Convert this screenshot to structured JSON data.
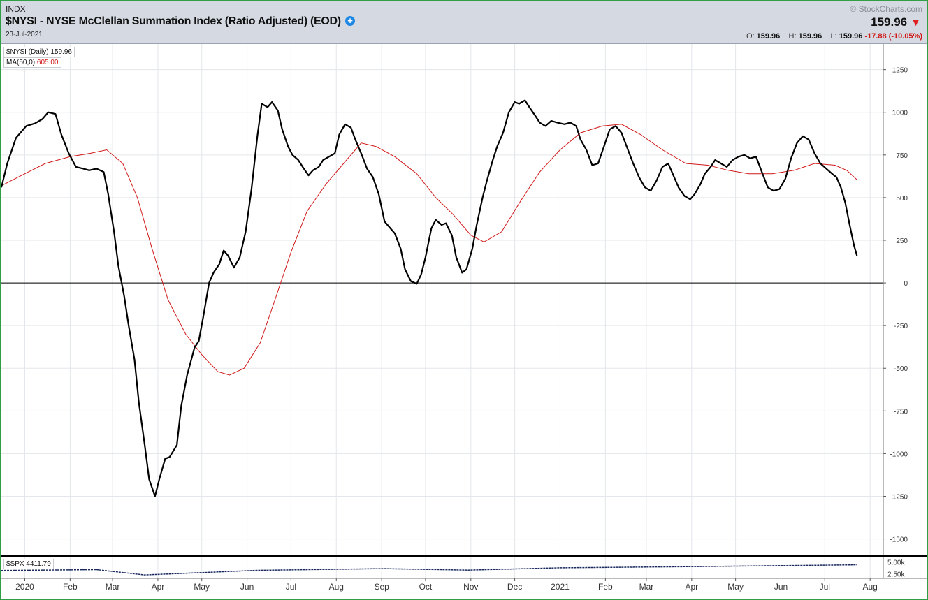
{
  "header": {
    "exchange": "INDX",
    "title": "$NYSI - NYSE McClellan Summation Index (Ratio Adjusted) (EOD)",
    "date": "23-Jul-2021",
    "copyright": "© StockCharts.com",
    "last_price": "159.96",
    "open_label": "O:",
    "open": "159.96",
    "high_label": "H:",
    "high": "159.96",
    "low_label": "L:",
    "low": "159.96",
    "change": "-17.88 (-10.05%)"
  },
  "legend": {
    "series_label": "$NYSI (Daily)",
    "series_value": "159.96",
    "ma_label": "MA(50,0)",
    "ma_value": "605.00"
  },
  "lower_panel": {
    "label": "$SPX",
    "value": "4411.79",
    "ticks": [
      "5.00k",
      "2.50k"
    ]
  },
  "colors": {
    "price_line": "#000000",
    "ma_line": "#d01818",
    "spx_line": "#1a2a5e",
    "frame": "#2f9e44"
  },
  "chart_data": {
    "type": "line",
    "title": "$NYSI - NYSE McClellan Summation Index (Ratio Adjusted) (EOD)",
    "x_axis": "date",
    "x_range": [
      "2019-12-16",
      "2021-08-10"
    ],
    "ylim": [
      -1600,
      1400
    ],
    "y_ticks": [
      1250,
      1000,
      750,
      500,
      250,
      0,
      -250,
      -500,
      -750,
      -1000,
      -1250,
      -1500
    ],
    "y_tick_labels": [
      "1250",
      "1000",
      "750",
      "500",
      "250",
      "0",
      "-250",
      "-500",
      "-750",
      "-1000",
      "-1250",
      "-1500"
    ],
    "x_ticks": [
      {
        "date": "2020-01-01",
        "label": "2020"
      },
      {
        "date": "2020-02-01",
        "label": "Feb"
      },
      {
        "date": "2020-03-01",
        "label": "Mar"
      },
      {
        "date": "2020-04-01",
        "label": "Apr"
      },
      {
        "date": "2020-05-01",
        "label": "May"
      },
      {
        "date": "2020-06-01",
        "label": "Jun"
      },
      {
        "date": "2020-07-01",
        "label": "Jul"
      },
      {
        "date": "2020-08-01",
        "label": "Aug"
      },
      {
        "date": "2020-09-01",
        "label": "Sep"
      },
      {
        "date": "2020-10-01",
        "label": "Oct"
      },
      {
        "date": "2020-11-01",
        "label": "Nov"
      },
      {
        "date": "2020-12-01",
        "label": "Dec"
      },
      {
        "date": "2021-01-01",
        "label": "2021"
      },
      {
        "date": "2021-02-01",
        "label": "Feb"
      },
      {
        "date": "2021-03-01",
        "label": "Mar"
      },
      {
        "date": "2021-04-01",
        "label": "Apr"
      },
      {
        "date": "2021-05-01",
        "label": "May"
      },
      {
        "date": "2021-06-01",
        "label": "Jun"
      },
      {
        "date": "2021-07-01",
        "label": "Jul"
      },
      {
        "date": "2021-08-01",
        "label": "Aug"
      }
    ],
    "grid": true,
    "series": [
      {
        "name": "$NYSI (Daily)",
        "points": [
          [
            "2019-12-16",
            560
          ],
          [
            "2019-12-20",
            700
          ],
          [
            "2019-12-26",
            850
          ],
          [
            "2020-01-02",
            920
          ],
          [
            "2020-01-08",
            935
          ],
          [
            "2020-01-13",
            960
          ],
          [
            "2020-01-17",
            1000
          ],
          [
            "2020-01-22",
            990
          ],
          [
            "2020-01-26",
            870
          ],
          [
            "2020-01-31",
            760
          ],
          [
            "2020-02-05",
            680
          ],
          [
            "2020-02-10",
            670
          ],
          [
            "2020-02-14",
            660
          ],
          [
            "2020-02-19",
            670
          ],
          [
            "2020-02-24",
            650
          ],
          [
            "2020-02-27",
            520
          ],
          [
            "2020-03-02",
            300
          ],
          [
            "2020-03-05",
            100
          ],
          [
            "2020-03-09",
            -80
          ],
          [
            "2020-03-12",
            -250
          ],
          [
            "2020-03-16",
            -450
          ],
          [
            "2020-03-19",
            -700
          ],
          [
            "2020-03-23",
            -950
          ],
          [
            "2020-03-26",
            -1150
          ],
          [
            "2020-03-30",
            -1250
          ],
          [
            "2020-04-02",
            -1150
          ],
          [
            "2020-04-06",
            -1030
          ],
          [
            "2020-04-09",
            -1020
          ],
          [
            "2020-04-14",
            -950
          ],
          [
            "2020-04-17",
            -720
          ],
          [
            "2020-04-21",
            -540
          ],
          [
            "2020-04-26",
            -380
          ],
          [
            "2020-04-29",
            -340
          ],
          [
            "2020-05-02",
            -200
          ],
          [
            "2020-05-06",
            0
          ],
          [
            "2020-05-09",
            60
          ],
          [
            "2020-05-13",
            110
          ],
          [
            "2020-05-16",
            190
          ],
          [
            "2020-05-19",
            160
          ],
          [
            "2020-05-23",
            90
          ],
          [
            "2020-05-27",
            150
          ],
          [
            "2020-05-31",
            300
          ],
          [
            "2020-06-04",
            550
          ],
          [
            "2020-06-08",
            860
          ],
          [
            "2020-06-11",
            1050
          ],
          [
            "2020-06-15",
            1030
          ],
          [
            "2020-06-18",
            1060
          ],
          [
            "2020-06-22",
            1010
          ],
          [
            "2020-06-25",
            900
          ],
          [
            "2020-06-29",
            800
          ],
          [
            "2020-07-02",
            750
          ],
          [
            "2020-07-06",
            720
          ],
          [
            "2020-07-09",
            680
          ],
          [
            "2020-07-13",
            630
          ],
          [
            "2020-07-16",
            660
          ],
          [
            "2020-07-20",
            680
          ],
          [
            "2020-07-23",
            720
          ],
          [
            "2020-07-27",
            740
          ],
          [
            "2020-07-31",
            760
          ],
          [
            "2020-08-03",
            870
          ],
          [
            "2020-08-07",
            930
          ],
          [
            "2020-08-11",
            910
          ],
          [
            "2020-08-14",
            840
          ],
          [
            "2020-08-18",
            760
          ],
          [
            "2020-08-22",
            670
          ],
          [
            "2020-08-26",
            620
          ],
          [
            "2020-08-30",
            520
          ],
          [
            "2020-09-03",
            360
          ],
          [
            "2020-09-07",
            320
          ],
          [
            "2020-09-10",
            290
          ],
          [
            "2020-09-14",
            200
          ],
          [
            "2020-09-17",
            80
          ],
          [
            "2020-09-21",
            10
          ],
          [
            "2020-09-25",
            -5
          ],
          [
            "2020-09-28",
            50
          ],
          [
            "2020-10-01",
            150
          ],
          [
            "2020-10-05",
            320
          ],
          [
            "2020-10-08",
            370
          ],
          [
            "2020-10-12",
            340
          ],
          [
            "2020-10-15",
            350
          ],
          [
            "2020-10-19",
            280
          ],
          [
            "2020-10-22",
            150
          ],
          [
            "2020-10-26",
            60
          ],
          [
            "2020-10-29",
            80
          ],
          [
            "2020-11-02",
            200
          ],
          [
            "2020-11-05",
            340
          ],
          [
            "2020-11-09",
            500
          ],
          [
            "2020-11-12",
            600
          ],
          [
            "2020-11-16",
            720
          ],
          [
            "2020-11-19",
            800
          ],
          [
            "2020-11-23",
            880
          ],
          [
            "2020-11-27",
            1000
          ],
          [
            "2020-12-01",
            1060
          ],
          [
            "2020-12-04",
            1050
          ],
          [
            "2020-12-08",
            1070
          ],
          [
            "2020-12-11",
            1030
          ],
          [
            "2020-12-15",
            980
          ],
          [
            "2020-12-18",
            940
          ],
          [
            "2020-12-22",
            920
          ],
          [
            "2020-12-26",
            950
          ],
          [
            "2020-12-30",
            940
          ],
          [
            "2021-01-04",
            930
          ],
          [
            "2021-01-08",
            940
          ],
          [
            "2021-01-12",
            920
          ],
          [
            "2021-01-15",
            840
          ],
          [
            "2021-01-19",
            780
          ],
          [
            "2021-01-23",
            690
          ],
          [
            "2021-01-27",
            700
          ],
          [
            "2021-01-31",
            800
          ],
          [
            "2021-02-04",
            900
          ],
          [
            "2021-02-08",
            920
          ],
          [
            "2021-02-12",
            880
          ],
          [
            "2021-02-16",
            790
          ],
          [
            "2021-02-20",
            700
          ],
          [
            "2021-02-24",
            620
          ],
          [
            "2021-02-28",
            560
          ],
          [
            "2021-03-04",
            540
          ],
          [
            "2021-03-08",
            600
          ],
          [
            "2021-03-12",
            680
          ],
          [
            "2021-03-16",
            700
          ],
          [
            "2021-03-19",
            640
          ],
          [
            "2021-03-23",
            560
          ],
          [
            "2021-03-27",
            510
          ],
          [
            "2021-03-31",
            490
          ],
          [
            "2021-04-03",
            520
          ],
          [
            "2021-04-07",
            580
          ],
          [
            "2021-04-10",
            640
          ],
          [
            "2021-04-14",
            680
          ],
          [
            "2021-04-17",
            720
          ],
          [
            "2021-04-21",
            700
          ],
          [
            "2021-04-25",
            680
          ],
          [
            "2021-04-29",
            720
          ],
          [
            "2021-05-03",
            740
          ],
          [
            "2021-05-07",
            750
          ],
          [
            "2021-05-11",
            730
          ],
          [
            "2021-05-15",
            740
          ],
          [
            "2021-05-19",
            650
          ],
          [
            "2021-05-23",
            560
          ],
          [
            "2021-05-27",
            540
          ],
          [
            "2021-05-31",
            550
          ],
          [
            "2021-06-04",
            610
          ],
          [
            "2021-06-08",
            730
          ],
          [
            "2021-06-12",
            820
          ],
          [
            "2021-06-16",
            860
          ],
          [
            "2021-06-20",
            840
          ],
          [
            "2021-06-24",
            760
          ],
          [
            "2021-06-28",
            700
          ],
          [
            "2021-07-02",
            670
          ],
          [
            "2021-07-06",
            640
          ],
          [
            "2021-07-09",
            620
          ],
          [
            "2021-07-12",
            560
          ],
          [
            "2021-07-15",
            470
          ],
          [
            "2021-07-18",
            340
          ],
          [
            "2021-07-21",
            220
          ],
          [
            "2021-07-23",
            160
          ]
        ]
      },
      {
        "name": "MA(50,0)",
        "points": [
          [
            "2019-12-16",
            570
          ],
          [
            "2020-01-01",
            640
          ],
          [
            "2020-01-15",
            700
          ],
          [
            "2020-02-01",
            740
          ],
          [
            "2020-02-15",
            760
          ],
          [
            "2020-02-26",
            780
          ],
          [
            "2020-03-08",
            700
          ],
          [
            "2020-03-18",
            500
          ],
          [
            "2020-03-28",
            200
          ],
          [
            "2020-04-08",
            -100
          ],
          [
            "2020-04-20",
            -300
          ],
          [
            "2020-05-01",
            -420
          ],
          [
            "2020-05-12",
            -520
          ],
          [
            "2020-05-20",
            -540
          ],
          [
            "2020-05-30",
            -500
          ],
          [
            "2020-06-10",
            -350
          ],
          [
            "2020-06-20",
            -100
          ],
          [
            "2020-07-01",
            180
          ],
          [
            "2020-07-12",
            420
          ],
          [
            "2020-07-25",
            580
          ],
          [
            "2020-08-06",
            700
          ],
          [
            "2020-08-18",
            820
          ],
          [
            "2020-08-28",
            800
          ],
          [
            "2020-09-10",
            740
          ],
          [
            "2020-09-25",
            640
          ],
          [
            "2020-10-08",
            500
          ],
          [
            "2020-10-20",
            400
          ],
          [
            "2020-11-01",
            280
          ],
          [
            "2020-11-10",
            240
          ],
          [
            "2020-11-22",
            300
          ],
          [
            "2020-12-05",
            480
          ],
          [
            "2020-12-18",
            650
          ],
          [
            "2021-01-01",
            780
          ],
          [
            "2021-01-15",
            880
          ],
          [
            "2021-01-30",
            920
          ],
          [
            "2021-02-12",
            930
          ],
          [
            "2021-02-25",
            870
          ],
          [
            "2021-03-12",
            780
          ],
          [
            "2021-03-28",
            700
          ],
          [
            "2021-04-12",
            690
          ],
          [
            "2021-04-26",
            660
          ],
          [
            "2021-05-10",
            640
          ],
          [
            "2021-05-26",
            640
          ],
          [
            "2021-06-10",
            660
          ],
          [
            "2021-06-24",
            700
          ],
          [
            "2021-07-08",
            690
          ],
          [
            "2021-07-16",
            660
          ],
          [
            "2021-07-23",
            605
          ]
        ]
      }
    ],
    "lower_panel_series": {
      "name": "$SPX",
      "ticks": [
        5000,
        2500
      ],
      "ylim": [
        1500,
        6000
      ],
      "points": [
        [
          "2019-12-16",
          3190
        ],
        [
          "2020-02-19",
          3380
        ],
        [
          "2020-03-23",
          2240
        ],
        [
          "2020-06-08",
          3230
        ],
        [
          "2020-09-02",
          3580
        ],
        [
          "2020-10-30",
          3270
        ],
        [
          "2021-01-01",
          3760
        ],
        [
          "2021-04-01",
          4020
        ],
        [
          "2021-07-23",
          4412
        ]
      ]
    }
  }
}
